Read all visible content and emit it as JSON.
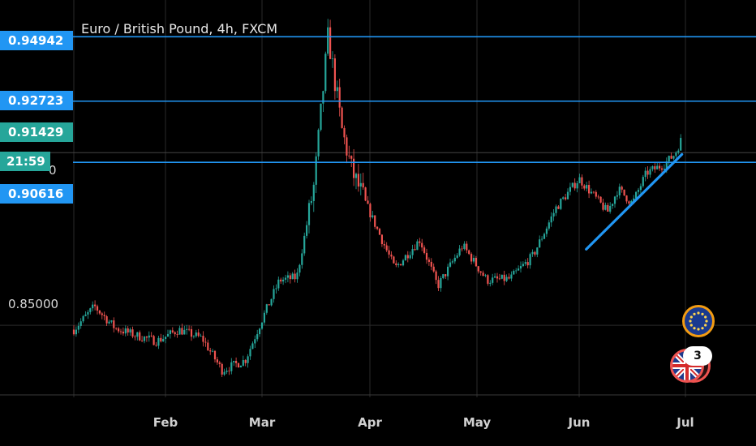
{
  "chart_data": {
    "type": "candlestick",
    "title": "Euro / British Pound, 4h, FXCM",
    "x_labels": [
      "Feb",
      "Mar",
      "Apr",
      "May",
      "Jun",
      "Jul"
    ],
    "y_tick_labels": [
      "0.85000"
    ],
    "ylim": [
      0.826,
      0.9565
    ],
    "grid": true,
    "price_lines": [
      {
        "label": "0.94942",
        "value": 0.94942,
        "color": "#2196f3"
      },
      {
        "label": "0.92723",
        "value": 0.92723,
        "color": "#2196f3"
      },
      {
        "label": "0.90616",
        "value": 0.90616,
        "color": "#2196f3"
      }
    ],
    "horizontal_line_value": 0.9095,
    "last_price": {
      "label": "0.91429",
      "value": 0.91429,
      "color": "#26a69a"
    },
    "countdown": {
      "label": "21:59",
      "color": "#26a69a"
    },
    "covered_tick_tail": "0",
    "trendline": {
      "from": {
        "x": "Jun 3",
        "y": 0.8762
      },
      "to": {
        "x": "Jun 30",
        "y": 0.9089
      },
      "color": "#2196f3"
    },
    "price_path": [
      {
        "x": "Jan 1",
        "y": 0.8485
      },
      {
        "x": "Jan 8",
        "y": 0.8565
      },
      {
        "x": "Jan 15",
        "y": 0.849
      },
      {
        "x": "Jan 22",
        "y": 0.8465
      },
      {
        "x": "Jan 29",
        "y": 0.8445
      },
      {
        "x": "Feb 5",
        "y": 0.8485
      },
      {
        "x": "Feb 12",
        "y": 0.8455
      },
      {
        "x": "Feb 18",
        "y": 0.8345
      },
      {
        "x": "Feb 25",
        "y": 0.838
      },
      {
        "x": "Mar 1",
        "y": 0.852
      },
      {
        "x": "Mar 6",
        "y": 0.8655
      },
      {
        "x": "Mar 11",
        "y": 0.8665
      },
      {
        "x": "Mar 16",
        "y": 0.8985
      },
      {
        "x": "Mar 20",
        "y": 0.9499
      },
      {
        "x": "Mar 24",
        "y": 0.917
      },
      {
        "x": "Mar 27",
        "y": 0.9025
      },
      {
        "x": "Apr 2",
        "y": 0.886
      },
      {
        "x": "Apr 8",
        "y": 0.8695
      },
      {
        "x": "Apr 15",
        "y": 0.8795
      },
      {
        "x": "Apr 20",
        "y": 0.8635
      },
      {
        "x": "Apr 27",
        "y": 0.8775
      },
      {
        "x": "May 4",
        "y": 0.8655
      },
      {
        "x": "May 11",
        "y": 0.866
      },
      {
        "x": "May 18",
        "y": 0.874
      },
      {
        "x": "May 25",
        "y": 0.8905
      },
      {
        "x": "Jun 1",
        "y": 0.9005
      },
      {
        "x": "Jun 5",
        "y": 0.8948
      },
      {
        "x": "Jun 9",
        "y": 0.889
      },
      {
        "x": "Jun 12",
        "y": 0.897
      },
      {
        "x": "Jun 16",
        "y": 0.892
      },
      {
        "x": "Jun 20",
        "y": 0.9025
      },
      {
        "x": "Jun 25",
        "y": 0.9055
      },
      {
        "x": "Jun 28",
        "y": 0.909
      },
      {
        "x": "Jun 30",
        "y": 0.9145
      }
    ]
  },
  "badges": {
    "eu_flag_icon": "eu-flag-icon",
    "uk_flag_icon": "uk-flag-icon",
    "count": "3"
  },
  "colors": {
    "up": "#26a69a",
    "down": "#ef5350",
    "line": "#2196f3"
  }
}
